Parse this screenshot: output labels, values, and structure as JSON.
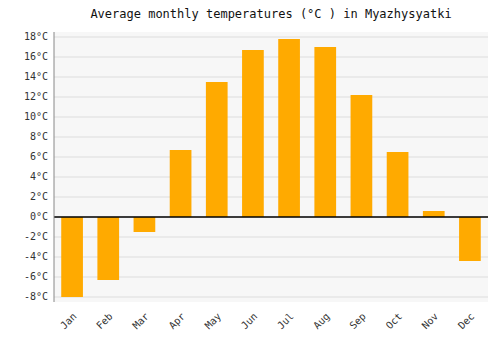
{
  "chart_data": {
    "type": "bar",
    "title": "Average monthly temperatures (°C ) in Myazhysyatki",
    "categories": [
      "Jan",
      "Feb",
      "Mar",
      "Apr",
      "May",
      "Jun",
      "Jul",
      "Aug",
      "Sep",
      "Oct",
      "Nov",
      "Dec"
    ],
    "values": [
      -8,
      -6.3,
      -1.5,
      6.7,
      13.5,
      16.7,
      17.8,
      17.0,
      12.2,
      6.5,
      0.6,
      -4.4
    ],
    "color": "#FFAA00",
    "ylim": [
      -8.5,
      18.5
    ],
    "yticks": [
      {
        "value": -8,
        "label": "-8°C"
      },
      {
        "value": -6,
        "label": "-6°C"
      },
      {
        "value": -4,
        "label": "-4°C"
      },
      {
        "value": -2,
        "label": "-2°C"
      },
      {
        "value": 0,
        "label": "0°C"
      },
      {
        "value": 2,
        "label": "2°C"
      },
      {
        "value": 4,
        "label": "4°C"
      },
      {
        "value": 6,
        "label": "6°C"
      },
      {
        "value": 8,
        "label": "8°C"
      },
      {
        "value": 10,
        "label": "10°C"
      },
      {
        "value": 12,
        "label": "12°C"
      },
      {
        "value": 14,
        "label": "14°C"
      },
      {
        "value": 16,
        "label": "16°C"
      },
      {
        "value": 18,
        "label": "18°C"
      }
    ],
    "grid": true
  }
}
